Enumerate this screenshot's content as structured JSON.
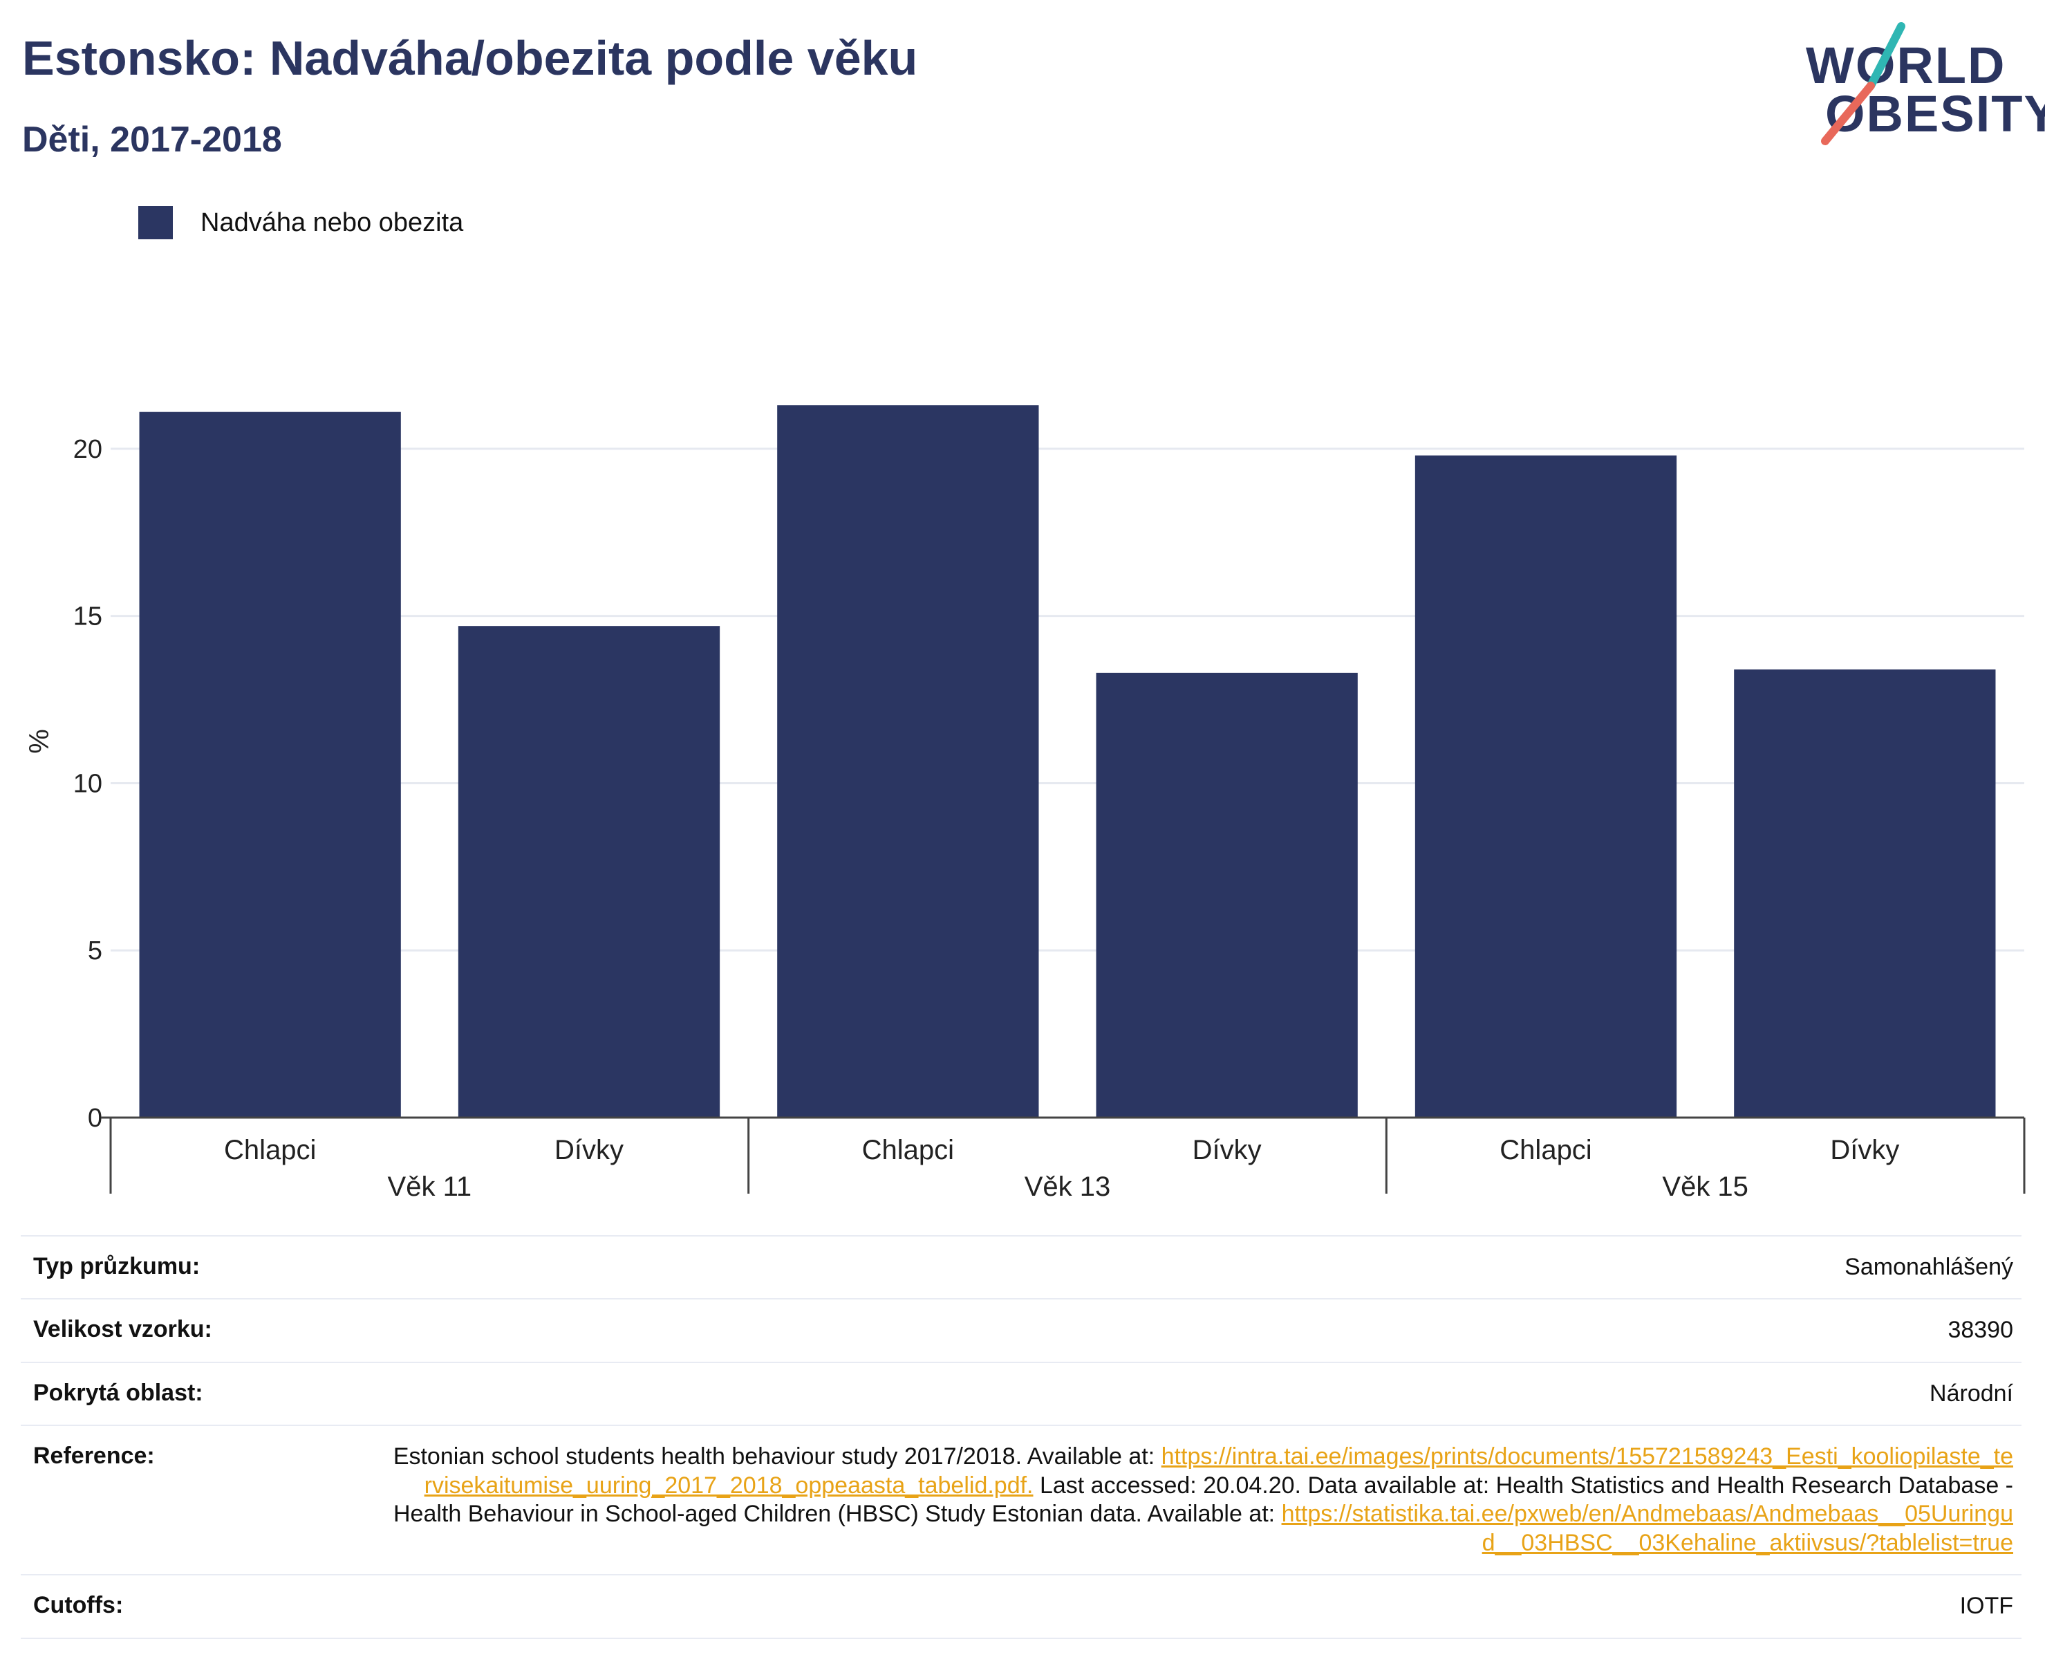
{
  "header": {
    "title": "Estonsko: Nadváha/obezita podle věku",
    "subtitle": "Děti, 2017-2018"
  },
  "logo": {
    "line1": "WORLD",
    "line2": "OBESITY",
    "colors": {
      "text": "#2b3560",
      "slash_top": "#2fb6b3",
      "slash_bottom": "#e8685a"
    }
  },
  "legend": {
    "label": "Nadváha nebo obezita",
    "color": "#2b3662"
  },
  "chart_data": {
    "type": "bar",
    "groups": [
      "Věk 11",
      "Věk 13",
      "Věk 15"
    ],
    "categories": [
      "Chlapci",
      "Dívky",
      "Chlapci",
      "Dívky",
      "Chlapci",
      "Dívky"
    ],
    "group_of_category": [
      0,
      0,
      1,
      1,
      2,
      2
    ],
    "series": [
      {
        "name": "Nadváha nebo obezita",
        "values": [
          21.1,
          14.7,
          21.3,
          13.3,
          19.8,
          13.4
        ]
      }
    ],
    "ylabel": "%",
    "ylim": [
      0,
      22.5
    ],
    "yticks": [
      "0",
      "5",
      "10",
      "15",
      "20"
    ],
    "grid": true,
    "legend_position": "top-left",
    "bar_color": "#2b3662"
  },
  "info": {
    "survey_type_label": "Typ průzkumu:",
    "survey_type_value": "Samonahlášený",
    "sample_size_label": "Velikost vzorku:",
    "sample_size_value": "38390",
    "area_label": "Pokrytá oblast:",
    "area_value": "Národní",
    "reference_label": "Reference:",
    "reference_text_1": "Estonian school students health behaviour study 2017/2018. Available at: ",
    "reference_link_1": "https://intra.tai.ee/images/prints/documents/155721589243_Eesti_kooliopilaste_tervisekaitumise_uuring_2017_2018_oppeaasta_tabelid.pdf.",
    "reference_text_2": " Last accessed: 20.04.20. Data available at: Health Statistics and Health Research Database - Health Behaviour in School-aged Children (HBSC) Study Estonian data. Available at: ",
    "reference_link_2": "https://statistika.tai.ee/pxweb/en/Andmebaas/Andmebaas__05Uuringud__03HBSC__03Kehaline_aktiivsus/?tablelist=true",
    "cutoffs_label": "Cutoffs:",
    "cutoffs_value": "IOTF"
  }
}
